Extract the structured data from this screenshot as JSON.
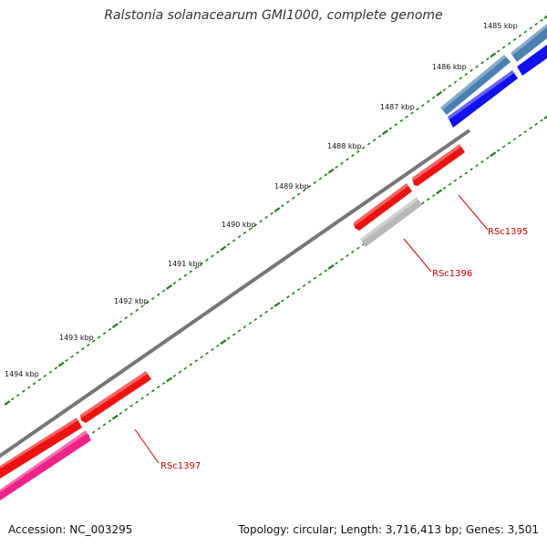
{
  "title": "Ralstonia solanacearum GMI1000, complete genome",
  "footer": {
    "accession": "Accession: NC_003295",
    "stats": "Topology: circular; Length: 3,716,413 bp; Genes: 3,501"
  },
  "kbp_labels": [
    "1485 kbp",
    "1486 kbp",
    "1487 kbp",
    "1488 kbp",
    "1489 kbp",
    "1490 kbp",
    "1491 kbp",
    "1492 kbp",
    "1493 kbp",
    "1494 kbp"
  ],
  "gene_labels": [
    "RSc1395",
    "RSc1396",
    "RSc1397"
  ],
  "colors": {
    "tick": "#1f7a1f",
    "backbone": "#777777",
    "gene_red": "#ee1111",
    "gene_blue": "#1111ee",
    "gene_steel": "#4a7fb0",
    "gene_gray": "#b8b8b8",
    "gene_pink": "#ee2288",
    "label_red": "#cc0000"
  }
}
